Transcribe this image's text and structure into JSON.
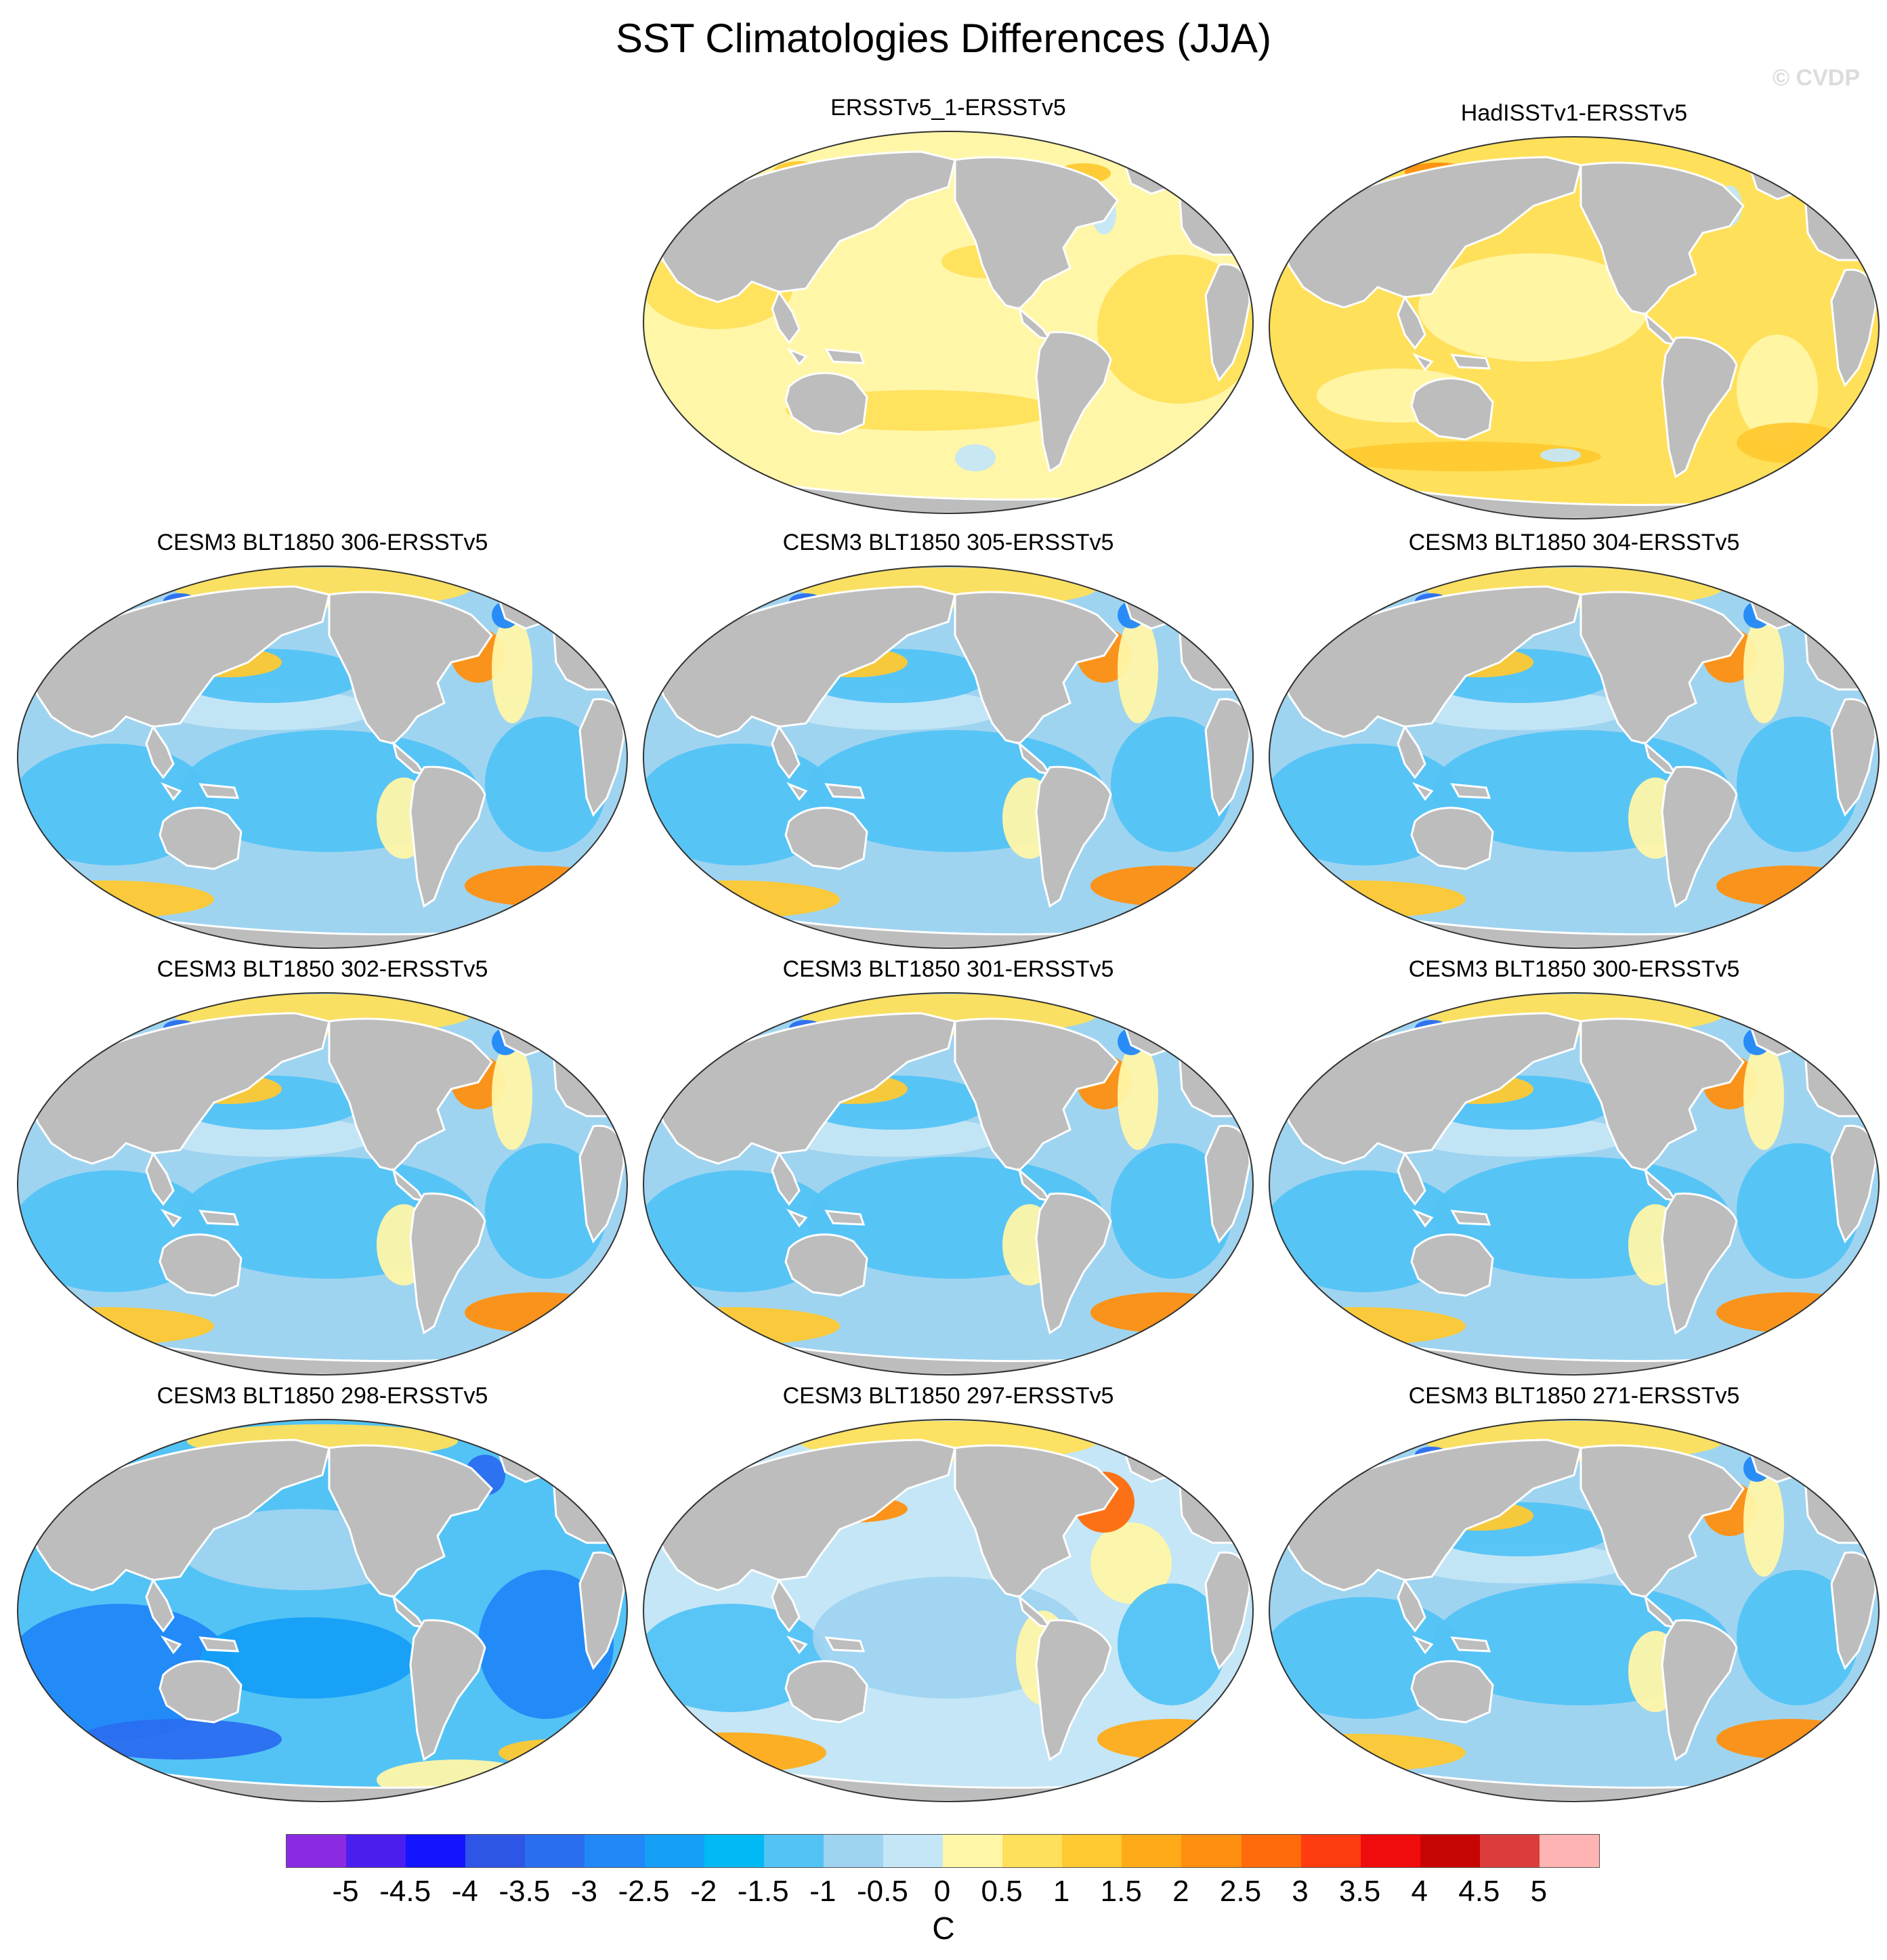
{
  "title": "SST Climatologies Differences (JJA)",
  "watermark": "© CVDP",
  "panels": [
    {
      "label": "ERSSTv5_1-ERSSTv5",
      "style": "obs1"
    },
    {
      "label": "HadISSTv1-ERSSTv5",
      "style": "obs2"
    },
    {
      "label": "CESM3 BLT1850 306-ERSSTv5",
      "style": "model"
    },
    {
      "label": "CESM3 BLT1850 305-ERSSTv5",
      "style": "model"
    },
    {
      "label": "CESM3 BLT1850 304-ERSSTv5",
      "style": "model"
    },
    {
      "label": "CESM3 BLT1850 302-ERSSTv5",
      "style": "model"
    },
    {
      "label": "CESM3 BLT1850 301-ERSSTv5",
      "style": "model"
    },
    {
      "label": "CESM3 BLT1850 300-ERSSTv5",
      "style": "model"
    },
    {
      "label": "CESM3 BLT1850 298-ERSSTv5",
      "style": "cold"
    },
    {
      "label": "CESM3 BLT1850 297-ERSSTv5",
      "style": "warm"
    },
    {
      "label": "CESM3 BLT1850 271-ERSSTv5",
      "style": "model"
    }
  ],
  "colorbar": {
    "colors": [
      "#8a2be2",
      "#4b1ef0",
      "#1414ff",
      "#2f55e6",
      "#2a6ef0",
      "#2188f8",
      "#169ff7",
      "#00b9f5",
      "#53c3f5",
      "#9fd4f0",
      "#c4e6f6",
      "#fff6a8",
      "#ffe05a",
      "#ffc932",
      "#ffab19",
      "#ff8f0f",
      "#ff6a0a",
      "#ff3c0f",
      "#f00c0c",
      "#c80505",
      "#dc3c3c",
      "#ffb4b4"
    ],
    "labels": [
      "-5",
      "-4.5",
      "-4",
      "-3.5",
      "-3",
      "-2.5",
      "-2",
      "-1.5",
      "-1",
      "-0.5",
      "0",
      "0.5",
      "1",
      "1.5",
      "2",
      "2.5",
      "3",
      "3.5",
      "4",
      "4.5",
      "5"
    ],
    "units": "C"
  }
}
